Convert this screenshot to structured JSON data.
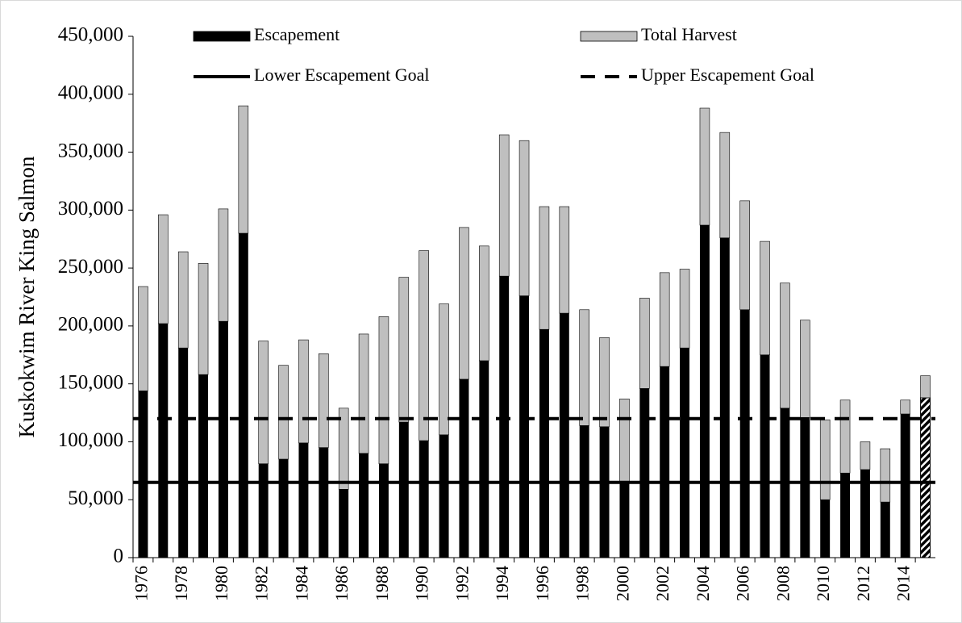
{
  "chart_data": {
    "type": "stacked_bar",
    "y_label": "Kuskokwim River King Salmon",
    "categories": [
      "1976",
      null,
      "1978",
      null,
      "1980",
      null,
      "1982",
      null,
      "1984",
      null,
      "1986",
      null,
      "1988",
      null,
      "1990",
      null,
      "1992",
      null,
      "1994",
      null,
      "1996",
      null,
      "1998",
      null,
      "2000",
      null,
      "2002",
      null,
      "2004",
      null,
      "2006",
      null,
      "2008",
      null,
      "2010",
      null,
      "2012",
      null,
      "2014",
      null
    ],
    "series": [
      {
        "name": "Escapement",
        "color": "#000000",
        "values": [
          144000,
          202000,
          181000,
          158000,
          204000,
          280000,
          81000,
          85000,
          99000,
          95000,
          59000,
          90000,
          81000,
          117000,
          101000,
          106000,
          154000,
          170000,
          243000,
          226000,
          197000,
          211000,
          114000,
          113000,
          65000,
          146000,
          165000,
          181000,
          287000,
          276000,
          214000,
          175000,
          129000,
          121000,
          50000,
          73000,
          76000,
          48000,
          124000,
          138000
        ]
      },
      {
        "name": "Total Harvest",
        "color": "#bfbfbf",
        "values": [
          90000,
          94000,
          83000,
          96000,
          97000,
          110000,
          106000,
          81000,
          89000,
          81000,
          70000,
          103000,
          127000,
          125000,
          164000,
          113000,
          131000,
          99000,
          122000,
          134000,
          106000,
          92000,
          100000,
          77000,
          72000,
          78000,
          81000,
          68000,
          101000,
          91000,
          94000,
          98000,
          108000,
          84000,
          69000,
          63000,
          24000,
          46000,
          12000,
          19000
        ]
      }
    ],
    "last_bar_hatched": true,
    "reference_lines": [
      {
        "name": "Lower Escapement Goal",
        "value": 65000,
        "style": "solid",
        "color": "#000000"
      },
      {
        "name": "Upper Escapement Goal",
        "value": 120000,
        "style": "dashed",
        "color": "#000000"
      }
    ],
    "ylim": [
      0,
      450000
    ],
    "yticks": [
      0,
      {
        "value": 50000,
        "label": "50,000"
      },
      {
        "value": 100000,
        "label": "100,000"
      },
      {
        "value": 150000,
        "label": "150,000"
      },
      {
        "value": 200000,
        "label": "200,000"
      },
      {
        "value": 250000,
        "label": "250,000"
      },
      {
        "value": 300000,
        "label": "300,000"
      },
      {
        "value": 350000,
        "label": "350,000"
      },
      {
        "value": 400000,
        "label": "400,000"
      },
      {
        "value": 450000,
        "label": "450,000"
      }
    ]
  }
}
